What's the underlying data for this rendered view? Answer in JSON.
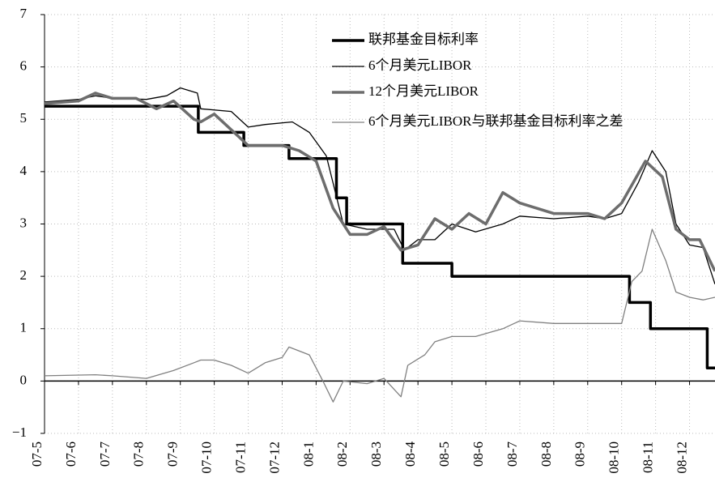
{
  "chart_data": {
    "type": "line",
    "xlim": [
      0,
      19.75
    ],
    "xticks": [
      {
        "value": 0,
        "label": "07-5"
      },
      {
        "value": 1,
        "label": "07-6"
      },
      {
        "value": 2,
        "label": "07-7"
      },
      {
        "value": 3,
        "label": "07-8"
      },
      {
        "value": 4,
        "label": "07-9"
      },
      {
        "value": 5,
        "label": "07-10"
      },
      {
        "value": 6,
        "label": "07-11"
      },
      {
        "value": 7,
        "label": "07-12"
      },
      {
        "value": 8,
        "label": "08-1"
      },
      {
        "value": 9,
        "label": "08-2"
      },
      {
        "value": 10,
        "label": "08-3"
      },
      {
        "value": 11,
        "label": "08-4"
      },
      {
        "value": 12,
        "label": "08-5"
      },
      {
        "value": 13,
        "label": "08-6"
      },
      {
        "value": 14,
        "label": "08-7"
      },
      {
        "value": 15,
        "label": "08-8"
      },
      {
        "value": 16,
        "label": "08-9"
      },
      {
        "value": 17,
        "label": "08-10"
      },
      {
        "value": 18,
        "label": "08-11"
      },
      {
        "value": 19,
        "label": "08-12"
      }
    ],
    "ylim": [
      -1,
      7
    ],
    "yticks": [
      {
        "value": -1,
        "label": "−1"
      },
      0,
      1,
      2,
      3,
      4,
      5,
      6,
      7
    ],
    "grid": true,
    "legend": "top-right",
    "series": [
      {
        "name": "联邦基金目标利率",
        "color": "#000000",
        "width": 3.5,
        "x": [
          0,
          4.53,
          4.53,
          5.87,
          5.87,
          7.2,
          7.2,
          8.6,
          8.6,
          8.9,
          8.9,
          10.55,
          10.55,
          12.0,
          12.0,
          17.23,
          17.23,
          17.85,
          17.85,
          19.52,
          19.52,
          19.75
        ],
        "values": [
          5.25,
          5.25,
          4.75,
          4.75,
          4.5,
          4.5,
          4.25,
          4.25,
          3.5,
          3.5,
          3.0,
          3.0,
          2.25,
          2.25,
          2.0,
          2.0,
          1.5,
          1.5,
          1.0,
          1.0,
          0.25,
          0.25
        ]
      },
      {
        "name": "6个月美元LIBOR",
        "color": "#000000",
        "width": 1.3,
        "x": [
          0,
          1,
          1.5,
          2,
          3,
          3.6,
          4,
          4.5,
          4.6,
          5.5,
          6,
          6.5,
          7.3,
          7.8,
          8.3,
          8.8,
          9.5,
          10.3,
          10.6,
          11,
          11.5,
          12,
          12.7,
          13.5,
          14,
          15,
          16,
          16.5,
          17,
          17.5,
          17.9,
          18.3,
          18.6,
          19,
          19.4,
          19.75
        ],
        "values": [
          5.33,
          5.38,
          5.45,
          5.4,
          5.38,
          5.45,
          5.6,
          5.5,
          5.2,
          5.15,
          4.85,
          4.9,
          4.95,
          4.75,
          4.3,
          3.0,
          2.9,
          2.9,
          2.5,
          2.7,
          2.7,
          3.0,
          2.85,
          3.0,
          3.15,
          3.1,
          3.15,
          3.1,
          3.2,
          3.8,
          4.4,
          4.0,
          3.0,
          2.6,
          2.55,
          1.85
        ]
      },
      {
        "name": "12个月美元LIBOR",
        "color": "#6d6d6d",
        "width": 3.5,
        "x": [
          0,
          1,
          1.5,
          2,
          2.7,
          3.3,
          3.8,
          4.4,
          4.6,
          5,
          5.5,
          6,
          6.5,
          7,
          7.5,
          8,
          8.5,
          9,
          9.5,
          10,
          10.5,
          11,
          11.5,
          12,
          12.5,
          13,
          13.5,
          14,
          14.5,
          15,
          16,
          16.5,
          17,
          17.7,
          18.2,
          18.6,
          19,
          19.3,
          19.75
        ],
        "values": [
          5.3,
          5.35,
          5.5,
          5.4,
          5.4,
          5.2,
          5.35,
          5.0,
          4.95,
          5.1,
          4.8,
          4.5,
          4.5,
          4.5,
          4.4,
          4.2,
          3.3,
          2.8,
          2.8,
          2.95,
          2.5,
          2.6,
          3.1,
          2.9,
          3.2,
          3.0,
          3.6,
          3.4,
          3.3,
          3.2,
          3.2,
          3.1,
          3.4,
          4.2,
          3.9,
          2.9,
          2.7,
          2.7,
          2.1
        ]
      },
      {
        "name": "6个月美元LIBOR与联邦基金目标利率之差",
        "color": "#808080",
        "width": 1.3,
        "x": [
          0,
          1.5,
          2,
          3,
          3.8,
          4.4,
          4.6,
          5,
          5.5,
          6,
          6.5,
          7,
          7.2,
          7.8,
          8.2,
          8.5,
          8.8,
          9.5,
          10,
          10.5,
          10.7,
          11.2,
          11.5,
          12,
          12.7,
          13.5,
          14,
          15,
          16,
          17,
          17.3,
          17.6,
          17.9,
          18.3,
          18.6,
          19,
          19.4,
          19.75
        ],
        "values": [
          0.1,
          0.12,
          0.1,
          0.05,
          0.2,
          0.35,
          0.4,
          0.4,
          0.3,
          0.15,
          0.35,
          0.45,
          0.65,
          0.5,
          0.0,
          -0.4,
          0.0,
          -0.05,
          0.05,
          -0.3,
          0.3,
          0.5,
          0.75,
          0.85,
          0.85,
          1.0,
          1.15,
          1.1,
          1.1,
          1.1,
          1.9,
          2.1,
          2.9,
          2.3,
          1.7,
          1.6,
          1.55,
          1.6
        ]
      }
    ]
  }
}
